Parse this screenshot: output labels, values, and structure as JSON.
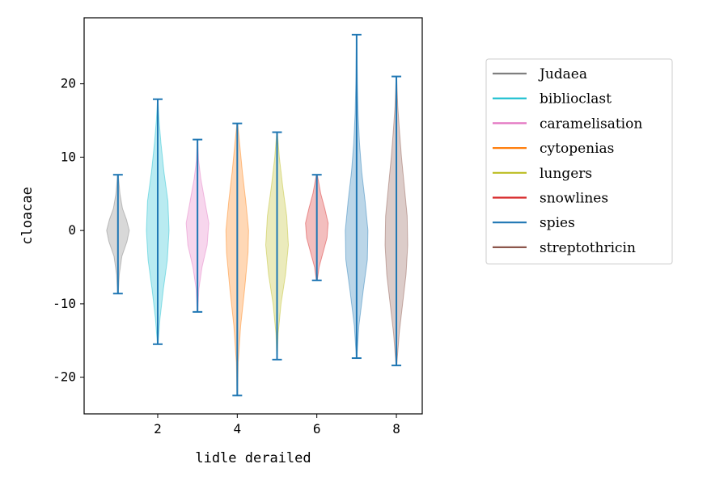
{
  "chart_data": {
    "type": "violin",
    "title": "",
    "xlabel": "lidle derailed",
    "ylabel": "cloacae",
    "xlim": [
      0.15,
      8.65
    ],
    "ylim": [
      -25,
      29
    ],
    "xticks": [
      2,
      4,
      6,
      8
    ],
    "yticks": [
      -20,
      -10,
      0,
      10,
      20
    ],
    "grid": false,
    "legend_position": "right",
    "whisker_color": "#1f77b4",
    "series": [
      {
        "name": "Judaea",
        "x": 1,
        "color": "#7f7f7f",
        "min": -8.6,
        "max": 7.6,
        "profile": [
          [
            -8.6,
            0.03
          ],
          [
            -6,
            0.12
          ],
          [
            -3.5,
            0.35
          ],
          [
            -1.5,
            0.8
          ],
          [
            0,
            1.0
          ],
          [
            1.5,
            0.75
          ],
          [
            3,
            0.4
          ],
          [
            5,
            0.18
          ],
          [
            7.6,
            0.03
          ]
        ]
      },
      {
        "name": "biblioclast",
        "x": 2,
        "color": "#17becf",
        "min": -15.5,
        "max": 17.9,
        "profile": [
          [
            -15.5,
            0.03
          ],
          [
            -12,
            0.2
          ],
          [
            -8,
            0.5
          ],
          [
            -4,
            0.85
          ],
          [
            0,
            1.0
          ],
          [
            4,
            0.9
          ],
          [
            8,
            0.55
          ],
          [
            12,
            0.28
          ],
          [
            15,
            0.12
          ],
          [
            17.9,
            0.02
          ]
        ]
      },
      {
        "name": "caramelisation",
        "x": 3,
        "color": "#e377c2",
        "min": -11.1,
        "max": 12.4,
        "profile": [
          [
            -11.1,
            0.03
          ],
          [
            -8,
            0.12
          ],
          [
            -5,
            0.4
          ],
          [
            -2,
            0.85
          ],
          [
            1,
            1.0
          ],
          [
            4,
            0.65
          ],
          [
            7,
            0.3
          ],
          [
            9.5,
            0.1
          ],
          [
            12.4,
            0.02
          ]
        ]
      },
      {
        "name": "cytopenias",
        "x": 4,
        "color": "#ff7f0e",
        "min": -22.5,
        "max": 14.6,
        "profile": [
          [
            -22.5,
            0.02
          ],
          [
            -18,
            0.08
          ],
          [
            -13,
            0.3
          ],
          [
            -8,
            0.65
          ],
          [
            -3,
            0.95
          ],
          [
            0,
            1.0
          ],
          [
            4,
            0.75
          ],
          [
            8,
            0.45
          ],
          [
            12,
            0.2
          ],
          [
            14.6,
            0.03
          ]
        ]
      },
      {
        "name": "lungers",
        "x": 5,
        "color": "#bcbd22",
        "min": -17.6,
        "max": 13.4,
        "profile": [
          [
            -17.6,
            0.02
          ],
          [
            -14,
            0.1
          ],
          [
            -10,
            0.35
          ],
          [
            -6,
            0.75
          ],
          [
            -2,
            1.0
          ],
          [
            2,
            0.85
          ],
          [
            6,
            0.5
          ],
          [
            10,
            0.2
          ],
          [
            13.4,
            0.03
          ]
        ]
      },
      {
        "name": "snowlines",
        "x": 6,
        "color": "#d62728",
        "min": -6.8,
        "max": 7.6,
        "profile": [
          [
            -6.8,
            0.04
          ],
          [
            -5,
            0.2
          ],
          [
            -3,
            0.55
          ],
          [
            -1,
            0.9
          ],
          [
            1,
            1.0
          ],
          [
            3,
            0.7
          ],
          [
            5,
            0.35
          ],
          [
            7.6,
            0.04
          ]
        ]
      },
      {
        "name": "spies",
        "x": 7,
        "color": "#1f77b4",
        "min": -17.4,
        "max": 26.7,
        "profile": [
          [
            -17.4,
            0.02
          ],
          [
            -13,
            0.2
          ],
          [
            -8,
            0.6
          ],
          [
            -4,
            0.95
          ],
          [
            0,
            1.0
          ],
          [
            4,
            0.75
          ],
          [
            8,
            0.45
          ],
          [
            12,
            0.25
          ],
          [
            16,
            0.13
          ],
          [
            20,
            0.07
          ],
          [
            26.7,
            0.01
          ]
        ]
      },
      {
        "name": "streptothricin",
        "x": 8,
        "color": "#8c564b",
        "min": -18.4,
        "max": 21.0,
        "profile": [
          [
            -18.4,
            0.03
          ],
          [
            -14,
            0.25
          ],
          [
            -10,
            0.55
          ],
          [
            -6,
            0.85
          ],
          [
            -2,
            1.0
          ],
          [
            2,
            0.95
          ],
          [
            6,
            0.7
          ],
          [
            10,
            0.45
          ],
          [
            14,
            0.25
          ],
          [
            17,
            0.12
          ],
          [
            21,
            0.02
          ]
        ]
      }
    ]
  }
}
